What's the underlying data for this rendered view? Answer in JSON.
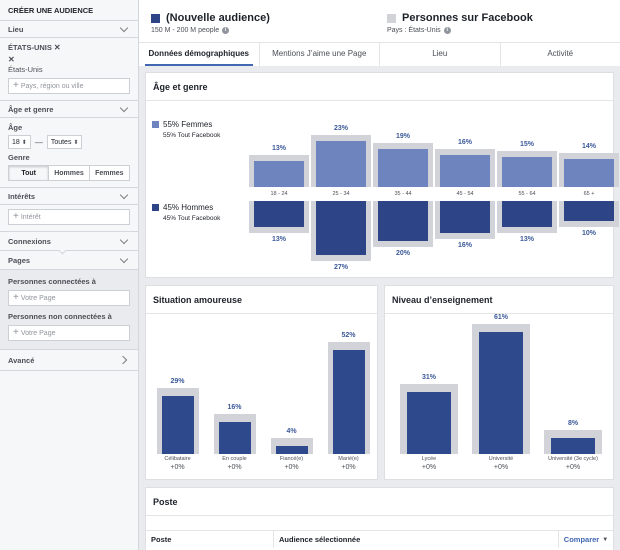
{
  "sidebar": {
    "title": "CRÉER UNE AUDIENCE",
    "location": {
      "label": "Lieu",
      "country_tag": "ÉTATS-UNIS",
      "country_sub": "États-Unis",
      "placeholder": "Pays, région ou ville"
    },
    "age_gender": {
      "label": "Âge et genre",
      "age_label": "Âge",
      "age_min": "18",
      "age_max": "Toutes",
      "gender_label": "Genre",
      "genders": [
        "Tout",
        "Hommes",
        "Femmes"
      ],
      "selected_gender": "Tout"
    },
    "interests": {
      "label": "Intérêts",
      "placeholder": "Intérêt"
    },
    "connections": {
      "label": "Connexions"
    },
    "pages": {
      "label": "Pages",
      "connected_label": "Personnes connectées à",
      "connected_placeholder": "Votre Page",
      "not_connected_label": "Personnes non connectées à",
      "not_connected_placeholder": "Votre Page"
    },
    "advanced": {
      "label": "Avancé"
    }
  },
  "header": {
    "audience_title": "(Nouvelle audience)",
    "audience_sub": "150 M - 200 M people",
    "compare_title": "Personnes sur Facebook",
    "compare_sub": "Pays : États-Unis"
  },
  "tabs": [
    "Données démographiques",
    "Mentions J’aime une Page",
    "Lieu",
    "Activité"
  ],
  "colors": {
    "accent": "#4267b2",
    "women": "#6d84bf",
    "men": "#2d4486",
    "benchmark": "#d1d3d8",
    "selected": "#2e4a8c"
  },
  "age_gender": {
    "title": "Âge et genre",
    "women_label": "55% Femmes",
    "women_sub": "55% Tout Facebook",
    "men_label": "45% Hommes",
    "men_sub": "45% Tout Facebook"
  },
  "relationship": {
    "title": "Situation amoureuse"
  },
  "education": {
    "title": "Niveau d’enseignement"
  },
  "poste": {
    "title": "Poste",
    "columns": [
      "Poste",
      "Audience sélectionnée"
    ],
    "compare_label": "Comparer"
  },
  "chart_data": [
    {
      "type": "bar",
      "title": "Âge et genre",
      "categories": [
        "18 - 24",
        "25 - 34",
        "35 - 44",
        "45 - 54",
        "55 - 64",
        "65 +"
      ],
      "series": [
        {
          "name": "55% Femmes",
          "values": [
            13,
            23,
            19,
            16,
            15,
            14
          ],
          "labels": [
            "13%",
            "23%",
            "19%",
            "16%",
            "15%",
            "14%"
          ]
        },
        {
          "name": "45% Hommes",
          "values": [
            13,
            27,
            20,
            16,
            13,
            10
          ],
          "labels": [
            "13%",
            "27%",
            "20%",
            "16%",
            "13%",
            "10%"
          ]
        }
      ]
    },
    {
      "type": "bar",
      "title": "Situation amoureuse",
      "categories": [
        "Célibataire",
        "En couple",
        "Fiancé(e)",
        "Marié(e)"
      ],
      "values": [
        29,
        16,
        4,
        52
      ],
      "labels": [
        "29%",
        "16%",
        "4%",
        "52%"
      ],
      "deltas": [
        "+0%",
        "+0%",
        "+0%",
        "+0%"
      ]
    },
    {
      "type": "bar",
      "title": "Niveau d’enseignement",
      "categories": [
        "Lycée",
        "Université",
        "Université (3e cycle)"
      ],
      "values": [
        31,
        61,
        8
      ],
      "labels": [
        "31%",
        "61%",
        "8%"
      ],
      "deltas": [
        "+0%",
        "+0%",
        "+0%"
      ]
    }
  ]
}
